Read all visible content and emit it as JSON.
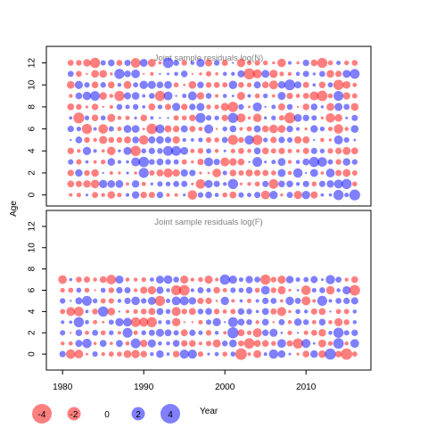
{
  "chart_data": {
    "type": "scatter",
    "subtype": "bubble-residual-matrix",
    "ylabel": "Age",
    "xlabel": "Year",
    "colors": {
      "positive": "#0000ff",
      "negative": "#ff0000"
    },
    "x_ticks": [
      "1980",
      "1990",
      "2000",
      "2010"
    ],
    "xlim": [
      1978,
      2018
    ],
    "panels": [
      {
        "title": "Joint sample residuals log(N)",
        "years": [
          1981,
          2016
        ],
        "ages": [
          0,
          12
        ],
        "ylim": [
          -1,
          13.5
        ],
        "y_ticks": [
          "0",
          "2",
          "4",
          "6",
          "8",
          "10",
          "12"
        ],
        "seed": 17,
        "highlights": [
          {
            "x": 1980,
            "y": 7,
            "r": -3.2
          },
          {
            "x": 1980,
            "y": 4,
            "r": 3.0
          },
          {
            "x": 1980,
            "y": 6,
            "r": 3.1
          },
          {
            "x": 1982,
            "y": 7,
            "r": -3.5
          },
          {
            "x": 1983,
            "y": 6,
            "r": -3.0
          },
          {
            "x": 1991,
            "y": 6,
            "r": -3.3
          },
          {
            "x": 1992,
            "y": 9,
            "r": -3.0
          },
          {
            "x": 2003,
            "y": 11,
            "r": -3.6
          },
          {
            "x": 2004,
            "y": 5,
            "r": -3.0
          },
          {
            "x": 2008,
            "y": 10,
            "r": 3.4
          },
          {
            "x": 2011,
            "y": 3,
            "r": 3.0
          },
          {
            "x": 2016,
            "y": 0,
            "r": 3.5
          },
          {
            "x": 2015,
            "y": 1,
            "r": 3.0
          },
          {
            "x": 1990,
            "y": 3,
            "r": 3.2
          },
          {
            "x": 1989,
            "y": 4,
            "r": -3.1
          },
          {
            "x": 2012,
            "y": 12,
            "r": -3.0
          },
          {
            "x": 2016,
            "y": 11,
            "r": 2.8
          },
          {
            "x": 2001,
            "y": 1,
            "r": 3.0
          }
        ]
      },
      {
        "title": "Joint sample residuals log(F)",
        "years": [
          1980,
          2016
        ],
        "ages": [
          0,
          7
        ],
        "ylim": [
          -1.5,
          13.5
        ],
        "y_ticks": [
          "0",
          "2",
          "4",
          "6",
          "8",
          "10",
          "12"
        ],
        "seed": 42,
        "highlights": [
          {
            "x": 2002,
            "y": 0,
            "r": -4.0
          },
          {
            "x": 2013,
            "y": 0,
            "r": 3.6
          },
          {
            "x": 2015,
            "y": 0,
            "r": -3.8
          },
          {
            "x": 2014,
            "y": 1,
            "r": 3.3
          },
          {
            "x": 2003,
            "y": 1,
            "r": -3.2
          },
          {
            "x": 2005,
            "y": 7,
            "r": -3.0
          },
          {
            "x": 2016,
            "y": 6,
            "r": -3.4
          },
          {
            "x": 1982,
            "y": 3,
            "r": 3.0
          },
          {
            "x": 1992,
            "y": 5,
            "r": -3.0
          },
          {
            "x": 2000,
            "y": 7,
            "r": 3.0
          },
          {
            "x": 2009,
            "y": 1,
            "r": -3.0
          },
          {
            "x": 1985,
            "y": 4,
            "r": 3.1
          }
        ]
      }
    ],
    "legend": {
      "items": [
        {
          "label": "-4",
          "value": -4
        },
        {
          "label": "-2",
          "value": -2
        },
        {
          "label": "0",
          "value": 0
        },
        {
          "label": "2",
          "value": 2
        },
        {
          "label": "4",
          "value": 4
        }
      ],
      "position": "bottom-left"
    }
  }
}
